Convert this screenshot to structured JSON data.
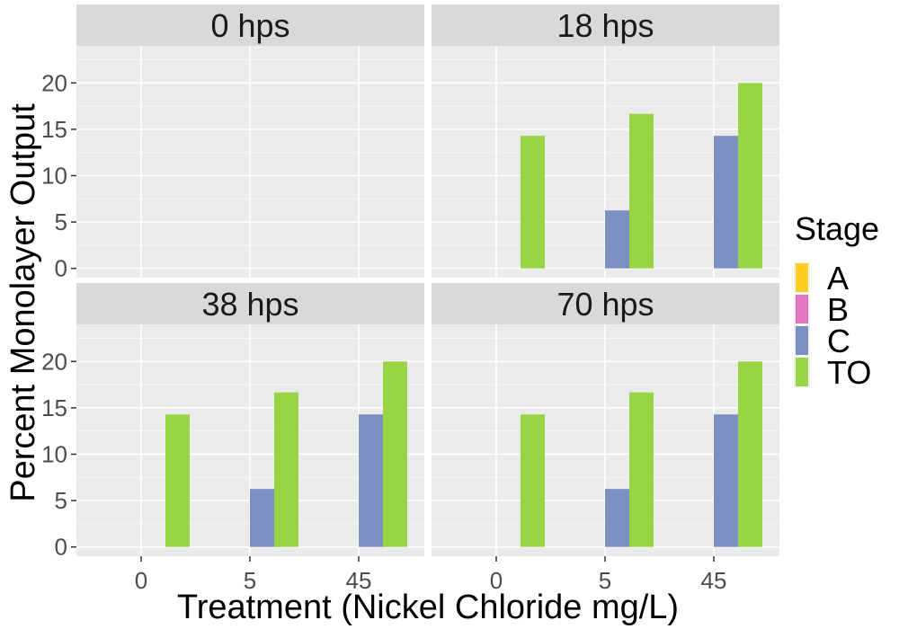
{
  "chart_data": {
    "type": "bar",
    "xlabel": "Treatment (Nickel Chloride mg/L)",
    "ylabel": "Percent Monolayer Output",
    "categories": [
      "0",
      "5",
      "45"
    ],
    "ylim": [
      -1,
      24
    ],
    "yticks": [
      0,
      5,
      10,
      15,
      20
    ],
    "grid": true,
    "legend": {
      "title": "Stage",
      "placement": "right",
      "entries": [
        {
          "name": "A",
          "color": "#FFCC22"
        },
        {
          "name": "B",
          "color": "#E377C2"
        },
        {
          "name": "C",
          "color": "#7B8FC0"
        },
        {
          "name": "TO",
          "color": "#98D443"
        }
      ]
    },
    "panels": [
      {
        "title": "0 hps",
        "series": [
          {
            "name": "A",
            "values": [
              0,
              0,
              0
            ]
          },
          {
            "name": "B",
            "values": [
              0,
              0,
              0
            ]
          },
          {
            "name": "C",
            "values": [
              0,
              0,
              0
            ]
          },
          {
            "name": "TO",
            "values": [
              0,
              0,
              0
            ]
          }
        ]
      },
      {
        "title": "18 hps",
        "series": [
          {
            "name": "A",
            "values": [
              0,
              0,
              0
            ]
          },
          {
            "name": "B",
            "values": [
              0,
              0,
              0
            ]
          },
          {
            "name": "C",
            "values": [
              0,
              6.25,
              14.29
            ]
          },
          {
            "name": "TO",
            "values": [
              14.29,
              16.67,
              20
            ]
          }
        ]
      },
      {
        "title": "38 hps",
        "series": [
          {
            "name": "A",
            "values": [
              0,
              0,
              0
            ]
          },
          {
            "name": "B",
            "values": [
              0,
              0,
              0
            ]
          },
          {
            "name": "C",
            "values": [
              0,
              6.25,
              14.29
            ]
          },
          {
            "name": "TO",
            "values": [
              14.29,
              16.67,
              20
            ]
          }
        ]
      },
      {
        "title": "70 hps",
        "series": [
          {
            "name": "A",
            "values": [
              0,
              0,
              0
            ]
          },
          {
            "name": "B",
            "values": [
              0,
              0,
              0
            ]
          },
          {
            "name": "C",
            "values": [
              0,
              6.25,
              14.29
            ]
          },
          {
            "name": "TO",
            "values": [
              14.29,
              16.67,
              20
            ]
          }
        ]
      }
    ]
  }
}
